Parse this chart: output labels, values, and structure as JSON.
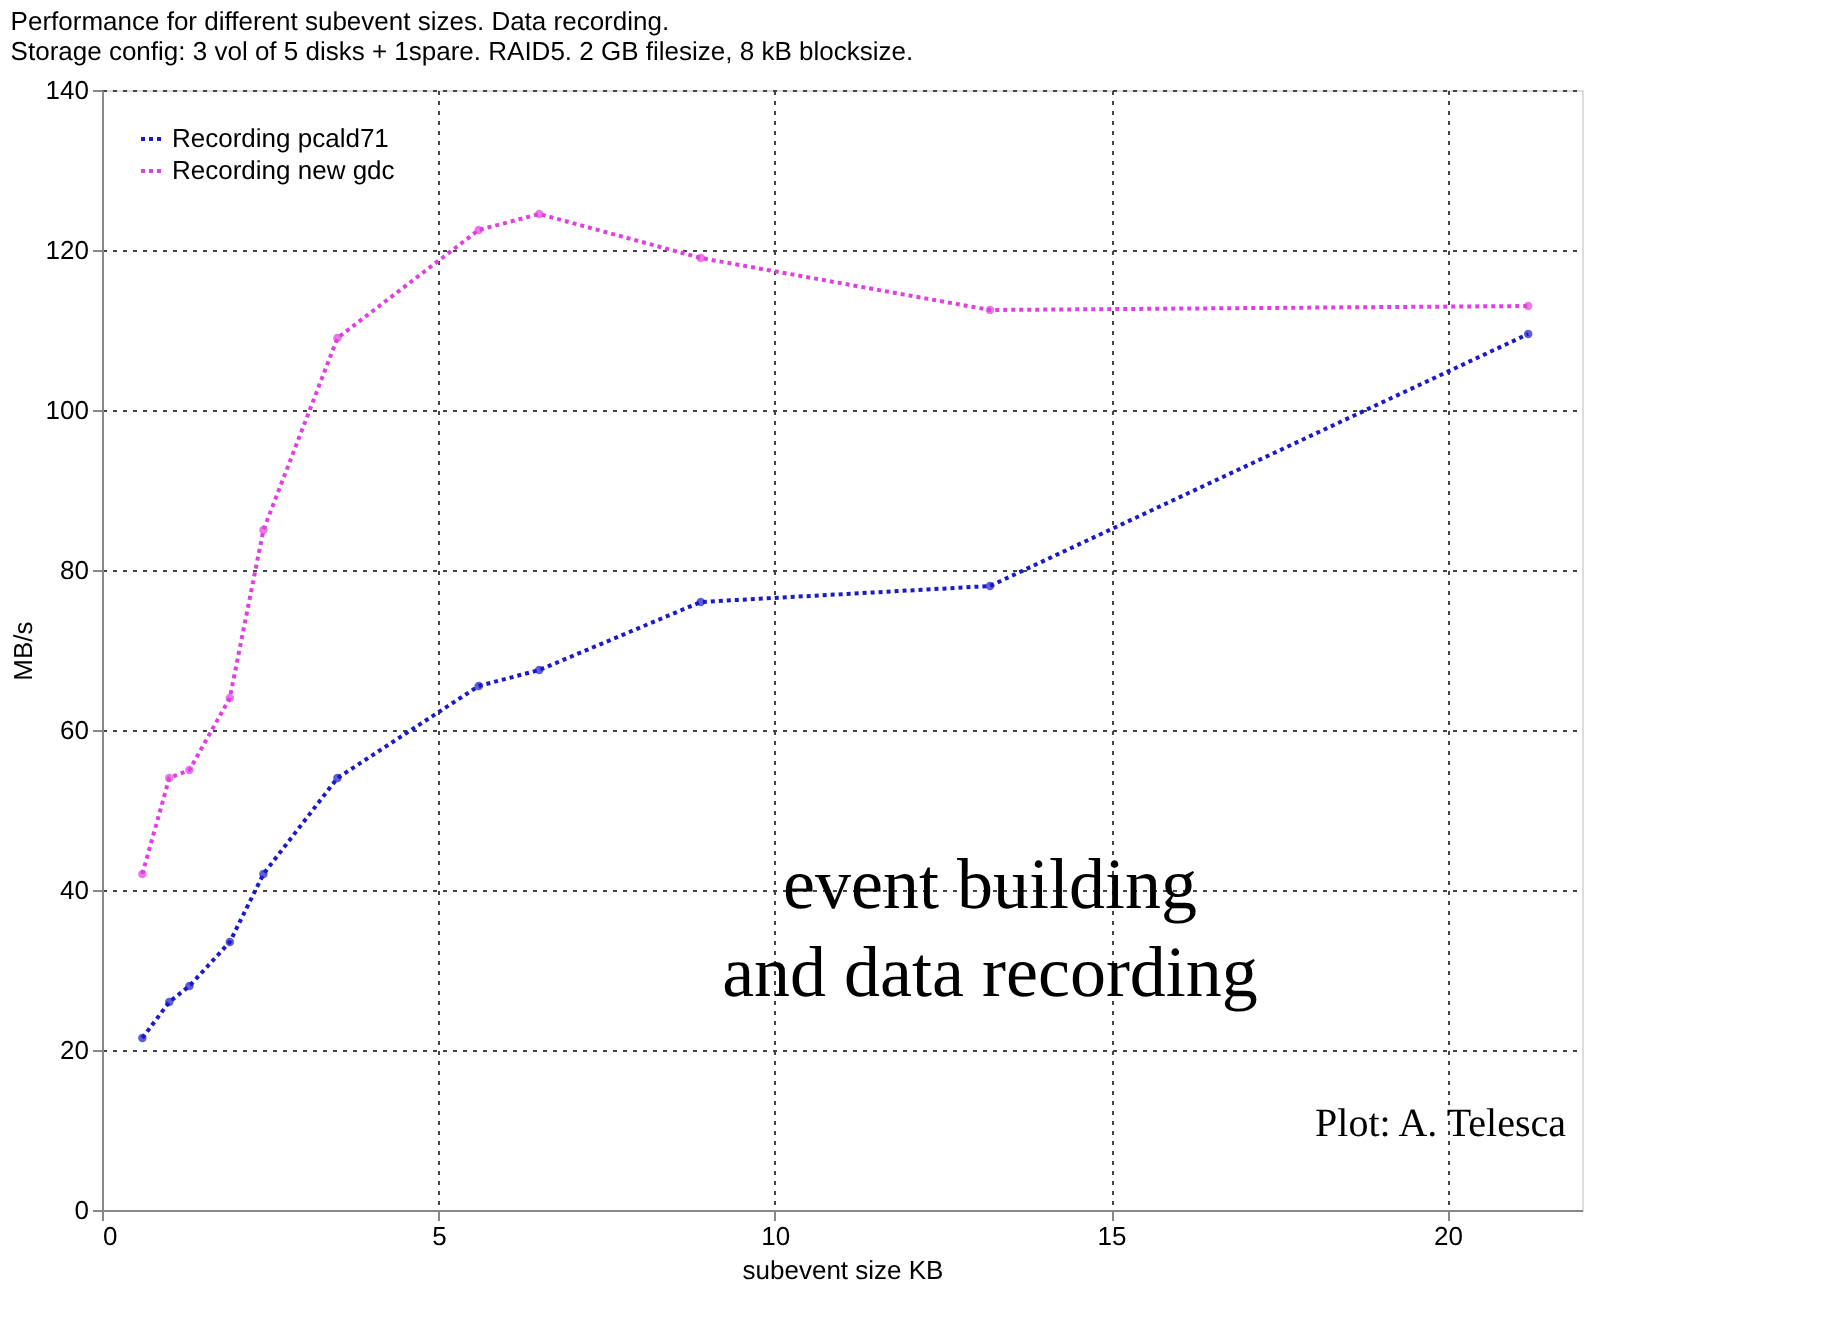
{
  "chart_data": {
    "type": "line",
    "title": [
      "Performance for different subevent sizes. Data recording.",
      "Storage config: 3 vol of 5 disks + 1spare. RAID5. 2 GB filesize, 8 kB blocksize."
    ],
    "xlabel": "subevent size KB",
    "ylabel": "MB/s",
    "x": [
      0.6,
      1.0,
      1.3,
      1.9,
      2.4,
      3.5,
      5.6,
      6.5,
      8.9,
      13.2,
      21.2
    ],
    "series": [
      {
        "name": "Recording pcald71",
        "color": "#1a1acc",
        "values": [
          21.5,
          26,
          28,
          33.5,
          42,
          54,
          65.5,
          67.5,
          76,
          78,
          109.5
        ]
      },
      {
        "name": "Recording new gdc",
        "color": "#e040e0",
        "values": [
          42,
          54,
          55,
          64,
          85,
          109,
          122.5,
          124.5,
          119,
          112.5,
          113
        ]
      }
    ],
    "xlim": [
      0,
      22
    ],
    "xticks": [
      0,
      5,
      10,
      15,
      20
    ],
    "ylim": [
      0,
      140
    ],
    "yticks": [
      0,
      20,
      40,
      60,
      80,
      100,
      120,
      140
    ],
    "grid": true,
    "legend": "top left",
    "marker": "circle",
    "line_style": "dotted",
    "annotations": [
      "event building\nand data recording",
      "Plot: A. Telesca"
    ]
  }
}
